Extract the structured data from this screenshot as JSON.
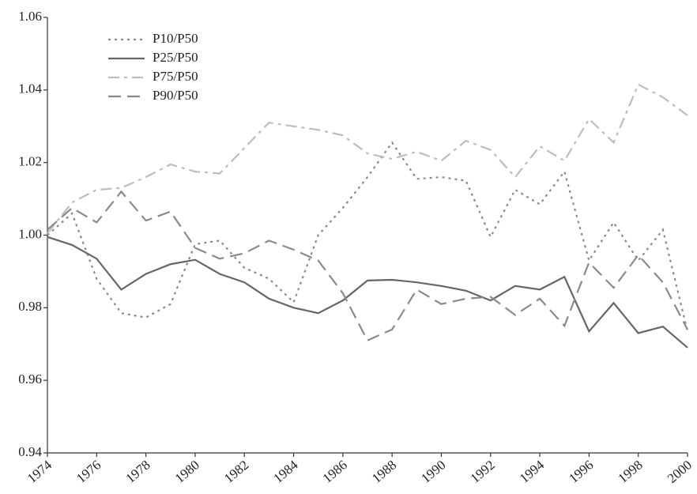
{
  "chart_data": {
    "type": "line",
    "x": [
      1974,
      1975,
      1976,
      1977,
      1978,
      1979,
      1980,
      1981,
      1982,
      1983,
      1984,
      1985,
      1986,
      1987,
      1988,
      1989,
      1990,
      1991,
      1992,
      1993,
      1994,
      1995,
      1996,
      1997,
      1998,
      1999,
      2000
    ],
    "series": [
      {
        "name": "P10/P50",
        "color": "#8a8a8a",
        "dash": "dotted",
        "values": [
          1.0,
          1.006,
          0.988,
          0.9785,
          0.9773,
          0.981,
          0.9975,
          0.9985,
          0.991,
          0.988,
          0.9815,
          1.0,
          1.0075,
          1.016,
          1.0255,
          1.0155,
          1.016,
          1.015,
          0.9995,
          1.0125,
          1.0085,
          1.0175,
          0.993,
          1.0035,
          0.993,
          1.0015,
          0.9735
        ]
      },
      {
        "name": "P25/P50",
        "color": "#666666",
        "dash": "solid",
        "values": [
          0.9995,
          0.9973,
          0.9935,
          0.985,
          0.9893,
          0.992,
          0.9932,
          0.9893,
          0.987,
          0.9825,
          0.98,
          0.9785,
          0.982,
          0.9875,
          0.9877,
          0.987,
          0.986,
          0.9847,
          0.982,
          0.986,
          0.985,
          0.9885,
          0.9735,
          0.9813,
          0.973,
          0.9748,
          0.969
        ]
      },
      {
        "name": "P75/P50",
        "color": "#bdbdbd",
        "dash": "dashdot",
        "values": [
          1.0005,
          1.009,
          1.0125,
          1.013,
          1.016,
          1.0195,
          1.0175,
          1.017,
          1.024,
          1.031,
          1.03,
          1.029,
          1.0275,
          1.0225,
          1.021,
          1.023,
          1.0205,
          1.026,
          1.0235,
          1.016,
          1.0245,
          1.0205,
          1.032,
          1.0255,
          1.0415,
          1.038,
          1.033
        ]
      },
      {
        "name": "P90/P50",
        "color": "#8a8a8a",
        "dash": "dashed",
        "values": [
          1.0015,
          1.0075,
          1.0035,
          1.012,
          1.004,
          1.0065,
          0.9965,
          0.9935,
          0.995,
          0.9985,
          0.996,
          0.993,
          0.984,
          0.971,
          0.974,
          0.985,
          0.981,
          0.9825,
          0.983,
          0.978,
          0.9825,
          0.975,
          0.9925,
          0.9855,
          0.9945,
          0.987,
          0.974
        ]
      }
    ],
    "xlim": [
      1974,
      2000
    ],
    "xticks": [
      1974,
      1976,
      1978,
      1980,
      1982,
      1984,
      1986,
      1988,
      1990,
      1992,
      1994,
      1996,
      1998,
      2000
    ],
    "ylim": [
      0.94,
      1.06
    ],
    "yticks": [
      0.94,
      0.96,
      0.98,
      {
        "value": 1,
        "label": "1.00"
      },
      1.02,
      1.04,
      1.06
    ],
    "legend": "upper left"
  }
}
